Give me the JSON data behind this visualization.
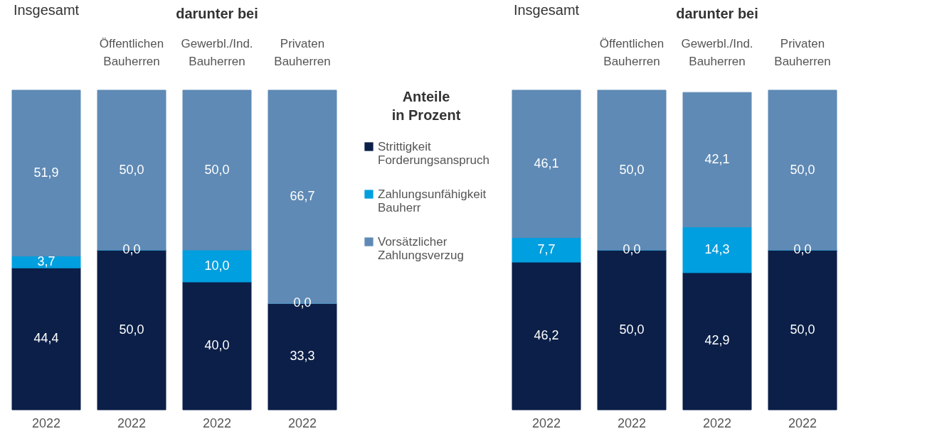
{
  "chart_data": [
    {
      "type": "bar",
      "stacked": true,
      "legend": "right",
      "legend_title": "Anteile in Prozent",
      "categories": [
        "2022",
        "2022",
        "2022",
        "2022"
      ],
      "annotations": [
        "Insgesamt",
        "darunter bei",
        "Öffentlichen Bauherren",
        "Gewerbl./Ind. Bauherren",
        "Privaten Bauherren"
      ],
      "series": [
        {
          "name": "Strittigkeit Forderungsanspruch",
          "color": "#0b1f48",
          "values": [
            44.4,
            50.0,
            40.0,
            33.3
          ],
          "value_labels": [
            "44,4",
            "50,0",
            "40,0",
            "33,3"
          ]
        },
        {
          "name": "Zahlungsunfähigkeit Bauherr",
          "color": "#009fdf",
          "values": [
            3.7,
            0.0,
            10.0,
            0.0
          ],
          "value_labels": [
            "3,7",
            "0,0",
            "10,0",
            "0,0"
          ]
        },
        {
          "name": "Vorsätzlicher Zahlungsverzug",
          "color": "#5f8ab5",
          "values": [
            51.9,
            50.0,
            50.0,
            66.7
          ],
          "value_labels": [
            "51,9",
            "50,0",
            "50,0",
            "66,7"
          ]
        }
      ]
    },
    {
      "type": "bar",
      "stacked": true,
      "legend": false,
      "categories": [
        "2022",
        "2022",
        "2022",
        "2022"
      ],
      "annotations": [
        "Insgesamt",
        "darunter bei",
        "Öffentlichen Bauherren",
        "Gewerbl./Ind. Bauherren",
        "Privaten Bauherren"
      ],
      "series": [
        {
          "color": "#0b1f48",
          "values": [
            46.2,
            50.0,
            42.9,
            50.0
          ],
          "value_labels": [
            "46,2",
            "50,0",
            "42,9",
            "50,0"
          ]
        },
        {
          "color": "#009fdf",
          "values": [
            7.7,
            0.0,
            14.3,
            0.0
          ],
          "value_labels": [
            "7,7",
            "0,0",
            "14,3",
            "0,0"
          ]
        },
        {
          "color": "#5f8ab5",
          "values": [
            46.1,
            50.0,
            42.1,
            50.0
          ],
          "value_labels": [
            "46,1",
            "50,0",
            "42,1",
            "50,0"
          ]
        }
      ]
    }
  ]
}
